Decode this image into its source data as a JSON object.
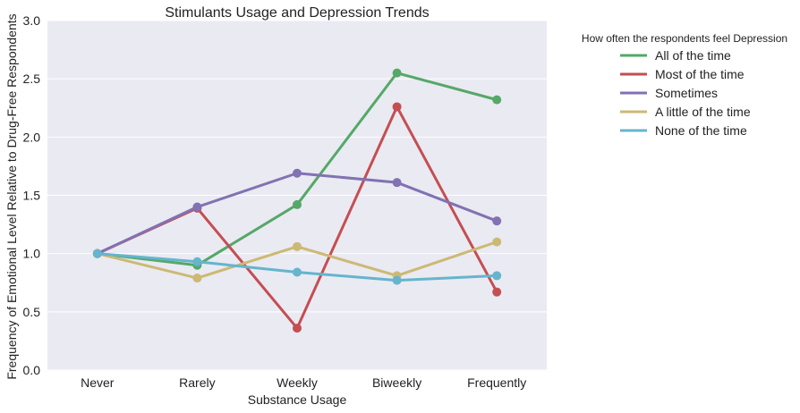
{
  "chart_data": {
    "type": "line",
    "title": "Stimulants Usage and Depression Trends",
    "xlabel": "Substance Usage",
    "ylabel": "Frequency of Emotional Level Relative to Drug-Free Respondents",
    "categories": [
      "Never",
      "Rarely",
      "Weekly",
      "Biweekly",
      "Frequently"
    ],
    "ylim": [
      0,
      3.0
    ],
    "yticks": [
      "0.0",
      "0.5",
      "1.0",
      "1.5",
      "2.0",
      "2.5",
      "3.0"
    ],
    "grid": true,
    "legend": {
      "title": "How often the respondents feel Depression",
      "placement": "outside-top-right"
    },
    "series": [
      {
        "name": "All of the time",
        "color": "#55a868",
        "values": [
          1.0,
          0.9,
          1.42,
          2.55,
          2.32
        ]
      },
      {
        "name": "Most of the time",
        "color": "#c44e52",
        "values": [
          1.0,
          1.39,
          0.36,
          2.26,
          0.67
        ]
      },
      {
        "name": "Sometimes",
        "color": "#8172b2",
        "values": [
          1.0,
          1.4,
          1.69,
          1.61,
          1.28
        ]
      },
      {
        "name": "A little of the time",
        "color": "#ccb974",
        "values": [
          1.0,
          0.79,
          1.06,
          0.81,
          1.1
        ]
      },
      {
        "name": "None of the time",
        "color": "#64b5cd",
        "values": [
          1.0,
          0.93,
          0.84,
          0.77,
          0.81
        ]
      }
    ]
  }
}
